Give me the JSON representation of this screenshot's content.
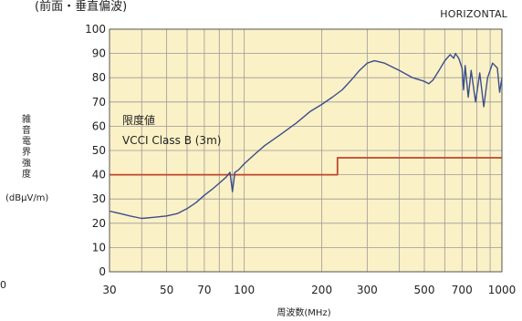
{
  "header": {
    "title": "(前面・垂直偏波)",
    "mode": "HORIZONTAL",
    "stray_left_label": "0"
  },
  "colors": {
    "plot_background": "#fbf1c6",
    "grid": "#9a9a9a",
    "measurement_line": "#3a4e8c",
    "limit_line": "#c0452c"
  },
  "chart_data": {
    "type": "line",
    "title": "",
    "xlabel": "周波数(MHz)",
    "ylabel": "雑音電界強度",
    "ylabel_unit": "(dBμV/m)",
    "xscale": "log",
    "xlim": [
      30,
      1000
    ],
    "ylim": [
      0,
      100
    ],
    "grid": true,
    "x_ticks": [
      30,
      50,
      70,
      100,
      200,
      300,
      500,
      700,
      1000
    ],
    "y_ticks": [
      0,
      10,
      20,
      30,
      40,
      50,
      60,
      70,
      80,
      90,
      100
    ],
    "annotation": {
      "line1": "限度値",
      "line2": "VCCI Class B (3m)"
    },
    "series": [
      {
        "name": "limit",
        "points": [
          [
            30,
            40
          ],
          [
            230,
            40
          ],
          [
            230,
            47
          ],
          [
            1000,
            47
          ]
        ]
      },
      {
        "name": "measurement",
        "points": [
          [
            30,
            25
          ],
          [
            33,
            24
          ],
          [
            36,
            23
          ],
          [
            40,
            22
          ],
          [
            45,
            22.5
          ],
          [
            50,
            23
          ],
          [
            55,
            24
          ],
          [
            60,
            26
          ],
          [
            65,
            28.5
          ],
          [
            70,
            31.5
          ],
          [
            75,
            34
          ],
          [
            80,
            36.5
          ],
          [
            85,
            39
          ],
          [
            88,
            41
          ],
          [
            90,
            33
          ],
          [
            92,
            41
          ],
          [
            95,
            42
          ],
          [
            100,
            44.5
          ],
          [
            110,
            48.5
          ],
          [
            120,
            52
          ],
          [
            140,
            57
          ],
          [
            160,
            61.5
          ],
          [
            180,
            66
          ],
          [
            200,
            69
          ],
          [
            220,
            72
          ],
          [
            240,
            75
          ],
          [
            260,
            79
          ],
          [
            280,
            83
          ],
          [
            300,
            86
          ],
          [
            320,
            87
          ],
          [
            350,
            86
          ],
          [
            400,
            83
          ],
          [
            450,
            80
          ],
          [
            500,
            78.5
          ],
          [
            520,
            77.5
          ],
          [
            540,
            79
          ],
          [
            570,
            83
          ],
          [
            600,
            87
          ],
          [
            630,
            89.5
          ],
          [
            650,
            88
          ],
          [
            660,
            90
          ],
          [
            680,
            88
          ],
          [
            700,
            84
          ],
          [
            710,
            75
          ],
          [
            720,
            85
          ],
          [
            740,
            72
          ],
          [
            760,
            83
          ],
          [
            790,
            70
          ],
          [
            820,
            82
          ],
          [
            850,
            68
          ],
          [
            880,
            80
          ],
          [
            920,
            86
          ],
          [
            960,
            84
          ],
          [
            980,
            74
          ],
          [
            1000,
            80
          ]
        ]
      }
    ]
  }
}
